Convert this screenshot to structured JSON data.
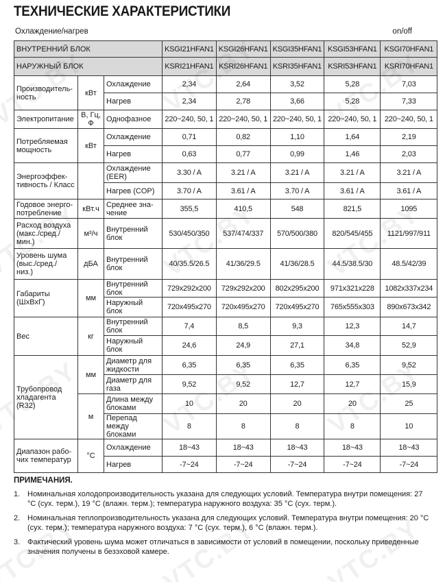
{
  "title": "ТЕХНИЧЕСКИЕ ХАРАКТЕРИСТИКИ",
  "mode": "Охлаждение/нагрев",
  "control": "on/off",
  "watermark": "VTC.BY",
  "header": [
    {
      "label": "ВНУТРЕННИЙ БЛОК",
      "models": [
        "KSGI21HFAN1",
        "KSGI26HFAN1",
        "KSGI35HFAN1",
        "KSGI53HFAN1",
        "KSGI70HFAN1"
      ]
    },
    {
      "label": "НАРУЖНЫЙ БЛОК",
      "models": [
        "KSRI21HFAN1",
        "KSRI26HFAN1",
        "KSRI35HFAN1",
        "KSRI53HFAN1",
        "KSRI70HFAN1"
      ]
    }
  ],
  "groups": [
    {
      "param": "Производитель-ность",
      "units": [
        {
          "unit": "кВт",
          "subs": [
            {
              "label": "Охлаждение",
              "values": [
                "2,34",
                "2,64",
                "3,52",
                "5,28",
                "7,03"
              ]
            },
            {
              "label": "Нагрев",
              "values": [
                "2,34",
                "2,78",
                "3,66",
                "5,28",
                "7,33"
              ]
            }
          ]
        }
      ]
    },
    {
      "param": "Электропитание",
      "units": [
        {
          "unit": "В, Гц, Ф",
          "subs": [
            {
              "label": "Однофазное",
              "values": [
                "220~240, 50, 1",
                "220~240, 50, 1",
                "220~240, 50, 1",
                "220~240, 50, 1",
                "220~240, 50, 1"
              ]
            }
          ]
        }
      ]
    },
    {
      "param": "Потребляемая мощность",
      "units": [
        {
          "unit": "кВт",
          "subs": [
            {
              "label": "Охлаждение",
              "values": [
                "0,71",
                "0,82",
                "1,10",
                "1,64",
                "2,19"
              ]
            },
            {
              "label": "Нагрев",
              "values": [
                "0,63",
                "0,77",
                "0,99",
                "1,46",
                "2,03"
              ]
            }
          ]
        }
      ]
    },
    {
      "param": "Энергоэффек-тивность / Класс",
      "units": [
        {
          "unit": "",
          "subs": [
            {
              "label": "Охлаждение (EER)",
              "values": [
                "3.30 / A",
                "3.21 / A",
                "3.21 / A",
                "3.21 / A",
                "3.21 / A"
              ]
            },
            {
              "label": "Нагрев (COP)",
              "values": [
                "3.70 / A",
                "3.61 / A",
                "3.70 / A",
                "3.61 / A",
                "3.61 / A"
              ]
            }
          ]
        }
      ]
    },
    {
      "param": "Годовое энерго-потребление",
      "units": [
        {
          "unit": "кВт.ч",
          "subs": [
            {
              "label": "Среднее зна-чение",
              "values": [
                "355,5",
                "410,5",
                "548",
                "821,5",
                "1095"
              ]
            }
          ]
        }
      ]
    },
    {
      "param": "Расход воздуха (макс./сред./ мин.)",
      "units": [
        {
          "unit": "м³/ч",
          "subs": [
            {
              "label": "Внутренний блок",
              "values": [
                "530/450/350",
                "537/474/337",
                "570/500/380",
                "820/545/455",
                "1121/997/911"
              ]
            }
          ]
        }
      ]
    },
    {
      "param": "Уровень шума (выс./сред./ низ.)",
      "units": [
        {
          "unit": "дБА",
          "subs": [
            {
              "label": "Внутренний блок",
              "values": [
                "40/35.5/26.5",
                "41/36/29.5",
                "41/36/28.5",
                "44.5/38.5/30",
                "48.5/42/39"
              ]
            }
          ]
        }
      ]
    },
    {
      "param": "Габариты (ШхВхГ)",
      "units": [
        {
          "unit": "мм",
          "subs": [
            {
              "label": "Внутренний блок",
              "values": [
                "729x292x200",
                "729x292x200",
                "802x295x200",
                "971x321x228",
                "1082x337x234"
              ]
            },
            {
              "label": "Наружный блок",
              "values": [
                "720x495x270",
                "720x495x270",
                "720x495x270",
                "765x555x303",
                "890x673x342"
              ]
            }
          ]
        }
      ]
    },
    {
      "param": "Вес",
      "units": [
        {
          "unit": "кг",
          "subs": [
            {
              "label": "Внутренний блок",
              "values": [
                "7,4",
                "8,5",
                "9,3",
                "12,3",
                "14,7"
              ]
            },
            {
              "label": "Наружный блок",
              "values": [
                "24,6",
                "24,9",
                "27,1",
                "34,8",
                "52,9"
              ]
            }
          ]
        }
      ]
    },
    {
      "param": "Трубопровод хладагента (R32)",
      "units": [
        {
          "unit": "мм",
          "subs": [
            {
              "label": "Диаметр для жидкости",
              "values": [
                "6,35",
                "6,35",
                "6,35",
                "6,35",
                "9,52"
              ]
            },
            {
              "label": "Диаметр для газа",
              "values": [
                "9,52",
                "9,52",
                "12,7",
                "12,7",
                "15,9"
              ]
            }
          ]
        },
        {
          "unit": "м",
          "subs": [
            {
              "label": "Длина между блоками",
              "values": [
                "10",
                "20",
                "20",
                "20",
                "25"
              ]
            },
            {
              "label": "Перепад между блоками",
              "values": [
                "8",
                "8",
                "8",
                "8",
                "10"
              ]
            }
          ]
        }
      ]
    },
    {
      "param": "Диапазон рабо-чих температур",
      "units": [
        {
          "unit": "°C",
          "subs": [
            {
              "label": "Охлаждение",
              "values": [
                "18~43",
                "18~43",
                "18~43",
                "18~43",
                "18~43"
              ]
            },
            {
              "label": "Нагрев",
              "values": [
                "-7~24",
                "-7~24",
                "-7~24",
                "-7~24",
                "-7~24"
              ]
            }
          ]
        }
      ]
    }
  ],
  "notes": {
    "title": "ПРИМЕЧАНИЯ.",
    "items": [
      {
        "num": "1.",
        "text": "Номинальная холодопроизводительность указана для следующих условий. Температура внутри помещения: 27 °C (сух. терм.), 19 °C (влажн. терм.); температура наружного воздуха: 35 °C (сух. терм.)."
      },
      {
        "num": "2.",
        "text": "Номинальная теплопроизводительность указана для следующих условий. Температура внутри помещения: 20 °C (сух. терм.); температура наружного воздуха: 7 °C (сух. терм.), 6 °C (влажн. терм.)."
      },
      {
        "num": "3.",
        "text": "Фактический уровень шума может отличаться в зависимости от условий в помещении, поскольку приведенные значения получены в безэховой камере."
      }
    ]
  }
}
